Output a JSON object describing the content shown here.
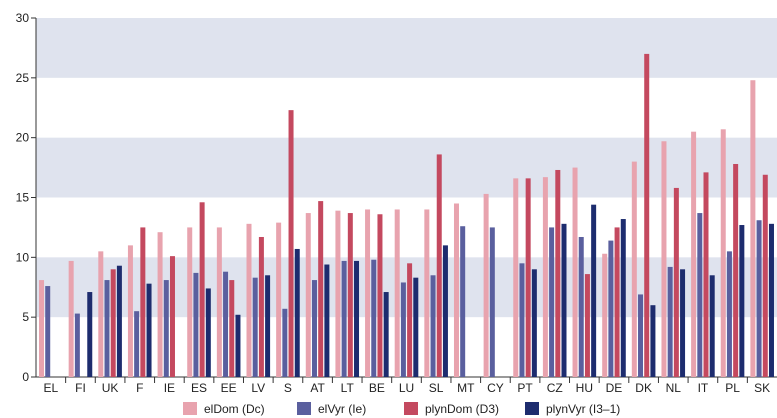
{
  "chart_data": {
    "type": "bar",
    "categories": [
      "EL",
      "FI",
      "UK",
      "F",
      "IE",
      "ES",
      "EE",
      "LV",
      "S",
      "AT",
      "LT",
      "BE",
      "LU",
      "SL",
      "MT",
      "CY",
      "PT",
      "CZ",
      "HU",
      "DE",
      "DK",
      "NL",
      "IT",
      "PL",
      "SK"
    ],
    "series": [
      {
        "name": "elDom (Dc)",
        "color": "#e8a3ae",
        "values": [
          8.1,
          9.7,
          10.5,
          11.0,
          12.1,
          12.5,
          12.5,
          12.8,
          12.9,
          13.7,
          13.9,
          14.0,
          14.0,
          14.0,
          14.5,
          15.3,
          16.6,
          16.7,
          17.5,
          10.3,
          18.0,
          19.7,
          20.5,
          20.7,
          24.8
        ]
      },
      {
        "name": "elVyr (Ie)",
        "color": "#5a5f9e",
        "values": [
          7.6,
          5.3,
          8.1,
          5.5,
          8.1,
          8.7,
          8.8,
          8.3,
          5.7,
          8.1,
          9.7,
          9.8,
          7.9,
          8.5,
          12.6,
          12.5,
          9.5,
          12.5,
          11.7,
          11.4,
          6.9,
          9.2,
          13.7,
          10.5,
          13.1
        ]
      },
      {
        "name": "plynDom (D3)",
        "color": "#c4495f",
        "values": [
          null,
          null,
          9.0,
          12.5,
          10.1,
          14.6,
          8.1,
          11.7,
          22.3,
          14.7,
          13.7,
          13.6,
          9.5,
          18.6,
          null,
          null,
          16.6,
          17.3,
          8.6,
          12.5,
          27.0,
          15.8,
          17.1,
          17.8,
          16.9
        ]
      },
      {
        "name": "plynVyr (I3–1)",
        "color": "#1d2c6e",
        "values": [
          null,
          7.1,
          9.3,
          7.8,
          null,
          7.4,
          5.2,
          8.5,
          10.7,
          9.4,
          9.7,
          7.1,
          8.3,
          11.0,
          null,
          null,
          9.0,
          12.8,
          14.4,
          13.2,
          6.0,
          9.0,
          8.5,
          12.7,
          12.8
        ]
      }
    ],
    "yticks": [
      0,
      5,
      10,
      15,
      20,
      25,
      30
    ],
    "ylim": [
      0,
      30
    ],
    "grid": "alternating horizontal bands",
    "band_color": "#dfe3ee",
    "legend_position": "bottom"
  }
}
